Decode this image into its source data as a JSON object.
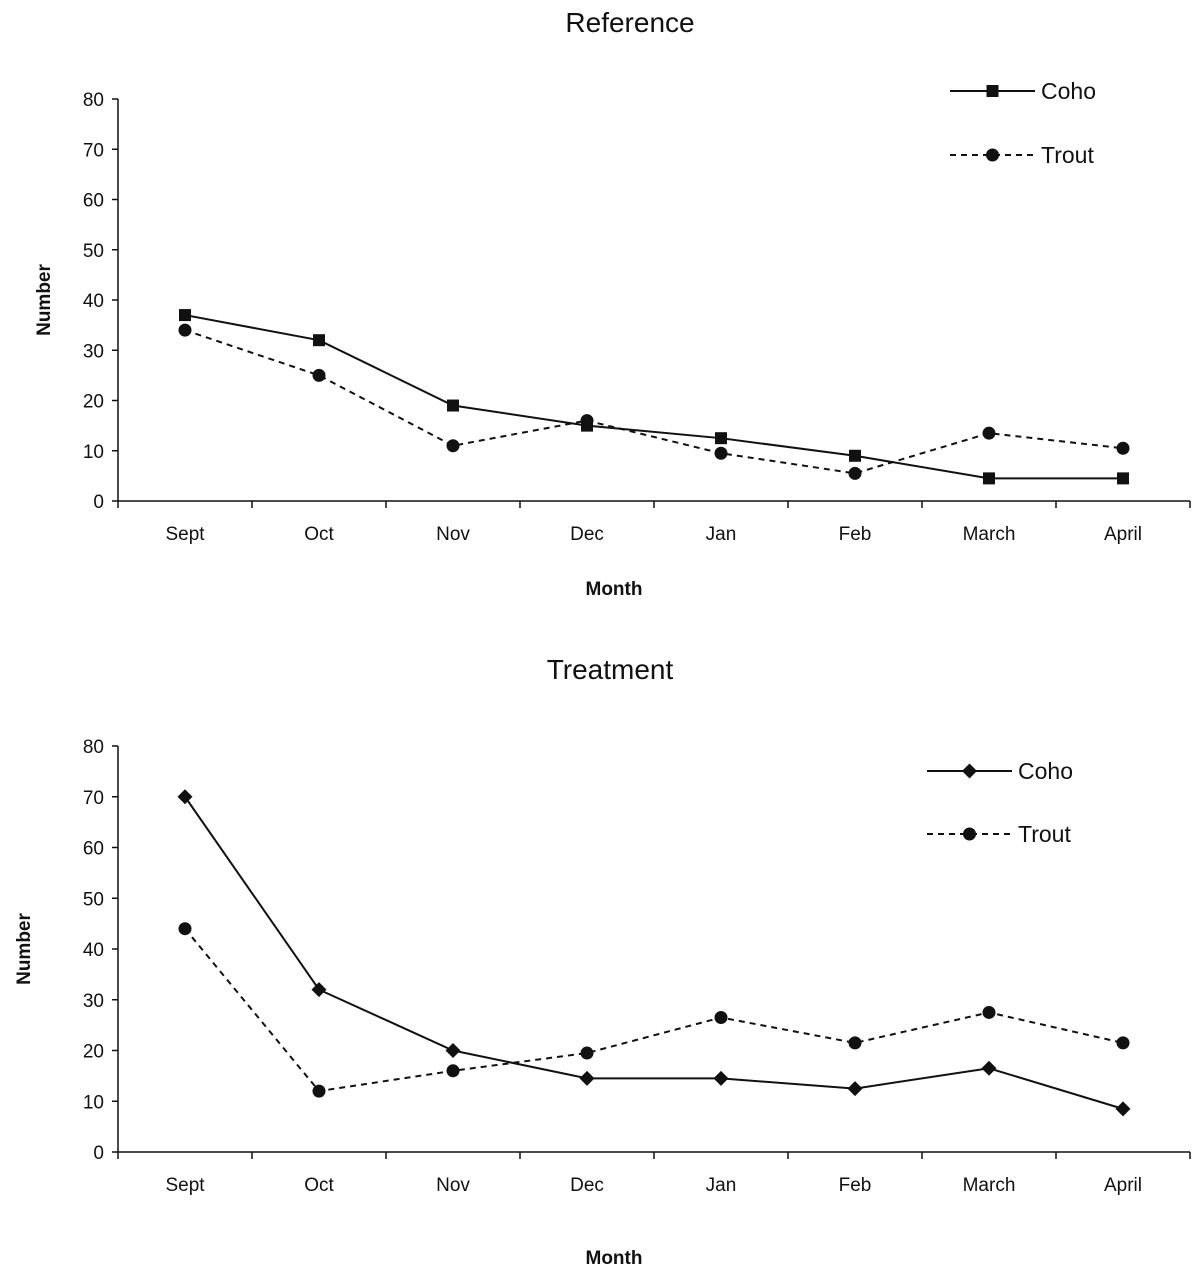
{
  "chart_data": [
    {
      "type": "line",
      "title": "Reference",
      "xlabel": "Month",
      "ylabel": "Number",
      "categories": [
        "Sept",
        "Oct",
        "Nov",
        "Dec",
        "Jan",
        "Feb",
        "March",
        "April"
      ],
      "ylim": [
        0,
        80
      ],
      "yticks": [
        0,
        10,
        20,
        30,
        40,
        50,
        60,
        70,
        80
      ],
      "grid": false,
      "legend_position": "top-right",
      "series": [
        {
          "name": "Coho",
          "marker": "square",
          "line_style": "solid",
          "color": "#111111",
          "values": [
            37,
            32,
            19,
            15,
            12.5,
            9,
            4.5,
            4.5
          ]
        },
        {
          "name": "Trout",
          "marker": "circle",
          "line_style": "dashed",
          "color": "#111111",
          "values": [
            34,
            25,
            11,
            16,
            9.5,
            5.5,
            13.5,
            10.5
          ]
        }
      ]
    },
    {
      "type": "line",
      "title": "Treatment",
      "xlabel": "Month",
      "ylabel": "Number",
      "categories": [
        "Sept",
        "Oct",
        "Nov",
        "Dec",
        "Jan",
        "Feb",
        "March",
        "April"
      ],
      "ylim": [
        0,
        80
      ],
      "yticks": [
        0,
        10,
        20,
        30,
        40,
        50,
        60,
        70,
        80
      ],
      "grid": false,
      "legend_position": "top-right",
      "series": [
        {
          "name": "Coho",
          "marker": "diamond",
          "line_style": "solid",
          "color": "#111111",
          "values": [
            70,
            32,
            20,
            14.5,
            14.5,
            12.5,
            16.5,
            8.5
          ]
        },
        {
          "name": "Trout",
          "marker": "circle",
          "line_style": "dashed",
          "color": "#111111",
          "values": [
            44,
            12,
            16,
            19.5,
            26.5,
            21.5,
            27.5,
            21.5
          ]
        }
      ]
    }
  ]
}
